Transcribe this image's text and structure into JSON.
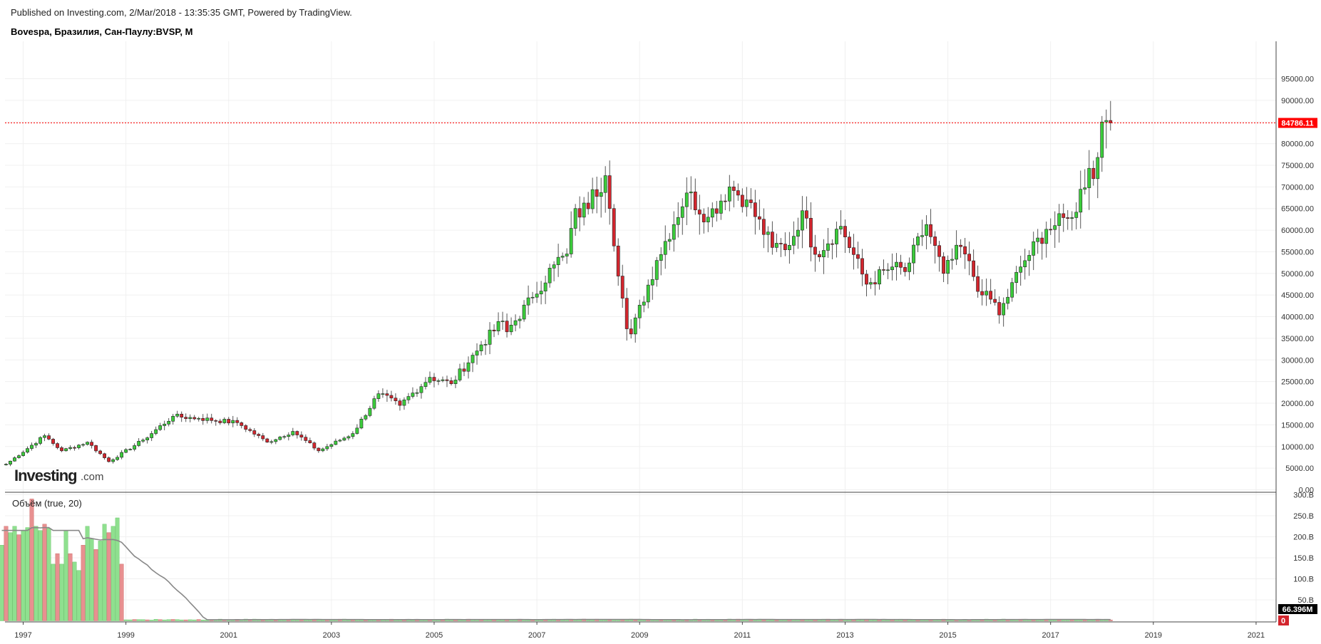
{
  "header": {
    "published": "Published on Investing.com, 2/Mar/2018 - 13:35:35 GMT, Powered by TradingView.",
    "symbol": "Bovespa, Бразилия, Сан-Паулу:BVSP, M"
  },
  "logo": {
    "main": "Investing",
    "suffix": ".com"
  },
  "volume_panel": {
    "title": "Объём (true, 20)",
    "last_value_label": "66.396M",
    "zero_label": "0"
  },
  "colors": {
    "up": "#3bcc3b",
    "down": "#d3262e",
    "wick": "#555555",
    "last_price": "#ff0000",
    "vol_up": "#8fe08f",
    "vol_down": "#e89090",
    "vol_ma": "#888888",
    "grid": "#f0f0f0"
  },
  "chart_data": [
    {
      "type": "candlestick",
      "title": "Bovespa, Бразилия, Сан-Паулу:BVSP, M",
      "interval": "M",
      "x_ticks": [
        "1997",
        "1999",
        "2001",
        "2003",
        "2005",
        "2007",
        "2009",
        "2011",
        "2013",
        "2015",
        "2017",
        "2019",
        "2021"
      ],
      "y_ticks": [
        "0.00",
        "5000.00",
        "10000.00",
        "15000.00",
        "20000.00",
        "25000.00",
        "30000.00",
        "35000.00",
        "40000.00",
        "45000.00",
        "50000.00",
        "55000.00",
        "60000.00",
        "65000.00",
        "70000.00",
        "75000.00",
        "80000.00",
        "85000.00",
        "90000.00",
        "95000.00"
      ],
      "ylim": [
        0,
        98000
      ],
      "xlim": [
        "1996-08",
        "2021-12"
      ],
      "last_price": 84786.11,
      "last_price_label": "84786.11",
      "grid": true,
      "close_anchors": [
        [
          "1996-09",
          5900
        ],
        [
          "1997-06",
          12500
        ],
        [
          "1997-10",
          9000
        ],
        [
          "1998-04",
          11000
        ],
        [
          "1998-09",
          6500
        ],
        [
          "1999-05",
          11500
        ],
        [
          "1999-12",
          17000
        ],
        [
          "2000-06",
          16500
        ],
        [
          "2001-03",
          15500
        ],
        [
          "2001-10",
          11000
        ],
        [
          "2002-04",
          13500
        ],
        [
          "2002-10",
          9000
        ],
        [
          "2003-06",
          13000
        ],
        [
          "2003-12",
          22200
        ],
        [
          "2004-05",
          19500
        ],
        [
          "2004-12",
          26000
        ],
        [
          "2005-05",
          24500
        ],
        [
          "2005-12",
          33500
        ],
        [
          "2006-05",
          39000
        ],
        [
          "2006-06",
          36500
        ],
        [
          "2006-12",
          44500
        ],
        [
          "2007-05",
          52000
        ],
        [
          "2007-07",
          54000
        ],
        [
          "2007-08",
          54500
        ],
        [
          "2007-10",
          65000
        ],
        [
          "2007-11",
          63000
        ],
        [
          "2008-05",
          72600
        ],
        [
          "2008-06",
          65000
        ],
        [
          "2008-10",
          37200
        ],
        [
          "2008-11",
          36000
        ],
        [
          "2009-05",
          53000
        ],
        [
          "2009-12",
          68600
        ],
        [
          "2010-05",
          63000
        ],
        [
          "2010-10",
          70000
        ],
        [
          "2011-02",
          67000
        ],
        [
          "2011-08",
          56000
        ],
        [
          "2011-12",
          56500
        ],
        [
          "2012-03",
          64500
        ],
        [
          "2012-06",
          54400
        ],
        [
          "2012-12",
          60900
        ],
        [
          "2013-06",
          47500
        ],
        [
          "2013-12",
          51500
        ],
        [
          "2014-03",
          50400
        ],
        [
          "2014-08",
          61300
        ],
        [
          "2014-12",
          50000
        ],
        [
          "2015-04",
          56200
        ],
        [
          "2015-09",
          45000
        ],
        [
          "2015-12",
          43300
        ],
        [
          "2016-01",
          40400
        ],
        [
          "2016-06",
          51500
        ],
        [
          "2016-12",
          60200
        ],
        [
          "2017-05",
          62700
        ],
        [
          "2017-06",
          62900
        ],
        [
          "2017-10",
          74300
        ],
        [
          "2017-11",
          71900
        ],
        [
          "2018-01",
          85000
        ],
        [
          "2018-02",
          85350
        ],
        [
          "2018-03",
          84786
        ]
      ],
      "volume": {
        "type": "bar",
        "y_ticks": [
          "50.B",
          "100.B",
          "150.B",
          "200.B",
          "250.B",
          "300.B"
        ],
        "ylim": [
          0,
          300
        ],
        "unit": "B",
        "early_monthly_values_1996_08_to_1998_12": [
          180,
          225,
          210,
          225,
          205,
          215,
          222,
          290,
          225,
          215,
          230,
          220,
          135,
          160,
          135,
          215,
          160,
          140,
          120,
          180,
          225,
          195,
          170,
          190,
          230,
          210,
          225,
          245,
          135
        ],
        "later_monthly_level": 3,
        "last_volume": 0.066396
      }
    }
  ]
}
